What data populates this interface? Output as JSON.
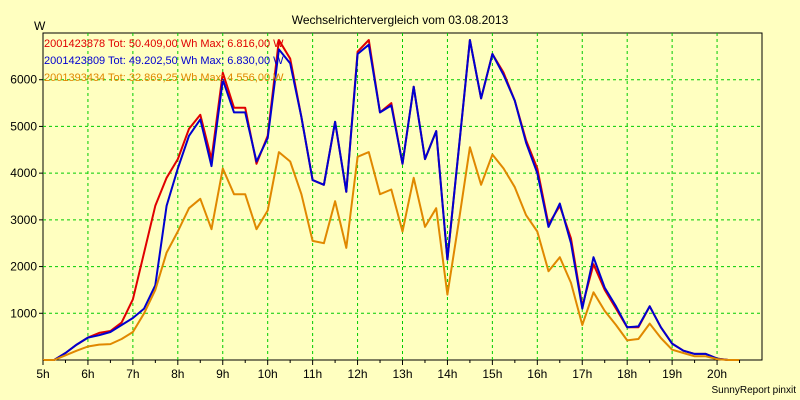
{
  "chart_data": {
    "type": "line",
    "title": "Wechselrichtervergleich vom 03.08.2013",
    "ylabel": "W",
    "credit": "SunnyReport pinxit",
    "xlim": [
      5,
      21
    ],
    "ylim": [
      0,
      7000
    ],
    "x_ticks": [
      "5h",
      "6h",
      "7h",
      "8h",
      "9h",
      "10h",
      "11h",
      "12h",
      "13h",
      "14h",
      "15h",
      "16h",
      "17h",
      "18h",
      "19h",
      "20h"
    ],
    "y_ticks": [
      1000,
      2000,
      3000,
      4000,
      5000,
      6000
    ],
    "grid": true,
    "legend_position": "top-left",
    "x": [
      5,
      5.25,
      5.5,
      5.75,
      6,
      6.25,
      6.5,
      6.75,
      7,
      7.25,
      7.5,
      7.75,
      8,
      8.25,
      8.5,
      8.75,
      9,
      9.25,
      9.5,
      9.75,
      10,
      10.25,
      10.5,
      10.75,
      11,
      11.25,
      11.5,
      11.75,
      12,
      12.25,
      12.5,
      12.75,
      13,
      13.25,
      13.5,
      13.75,
      14,
      14.25,
      14.5,
      14.75,
      15,
      15.25,
      15.5,
      15.75,
      16,
      16.25,
      16.5,
      16.75,
      17,
      17.25,
      17.5,
      17.75,
      18,
      18.25,
      18.5,
      18.75,
      19,
      19.25,
      19.5,
      19.75,
      20,
      20.25,
      20.5
    ],
    "series": [
      {
        "name": "2001423878 Tot: 50.409,00 Wh Max: 6.816,00 W",
        "color": "#e00000",
        "values": [
          0,
          0,
          150,
          330,
          480,
          580,
          620,
          800,
          1300,
          2300,
          3300,
          3900,
          4300,
          4950,
          5250,
          4300,
          6150,
          5400,
          5400,
          4200,
          4800,
          6850,
          6450,
          5200,
          3850,
          3750,
          5100,
          3600,
          6600,
          6850,
          5300,
          5500,
          4200,
          5850,
          4300,
          4900,
          2150,
          4500,
          6850,
          5600,
          6550,
          6150,
          5550,
          4700,
          4100,
          2900,
          3300,
          2600,
          1150,
          2050,
          1500,
          1100,
          700,
          700,
          1150,
          700,
          350,
          200,
          130,
          130,
          30,
          0,
          0
        ]
      },
      {
        "name": "2001423809 Tot: 49.202,50 Wh Max: 6.830,00 W",
        "color": "#0000d0",
        "values": [
          0,
          0,
          150,
          330,
          480,
          530,
          600,
          750,
          900,
          1100,
          1600,
          3300,
          4100,
          4800,
          5150,
          4150,
          6000,
          5300,
          5300,
          4250,
          4750,
          6650,
          6350,
          5200,
          3850,
          3750,
          5100,
          3600,
          6550,
          6750,
          5300,
          5450,
          4200,
          5850,
          4300,
          4900,
          2150,
          4500,
          6850,
          5600,
          6550,
          6100,
          5550,
          4650,
          4000,
          2850,
          3350,
          2500,
          1100,
          2200,
          1550,
          1150,
          700,
          720,
          1150,
          700,
          350,
          200,
          130,
          130,
          30,
          0,
          0
        ]
      },
      {
        "name": "2001393434 Tot: 32.869,25 Wh Max: 4.556,00 W",
        "color": "#e08800",
        "values": [
          0,
          0,
          100,
          200,
          290,
          330,
          340,
          450,
          600,
          1000,
          1500,
          2300,
          2750,
          3250,
          3450,
          2800,
          4100,
          3550,
          3550,
          2800,
          3200,
          4450,
          4250,
          3550,
          2550,
          2500,
          3400,
          2400,
          4350,
          4450,
          3550,
          3650,
          2750,
          3900,
          2850,
          3250,
          1400,
          2950,
          4556,
          3750,
          4400,
          4100,
          3700,
          3100,
          2750,
          1900,
          2200,
          1650,
          750,
          1450,
          1050,
          750,
          420,
          450,
          780,
          470,
          220,
          150,
          80,
          80,
          20,
          0,
          0
        ]
      }
    ]
  }
}
